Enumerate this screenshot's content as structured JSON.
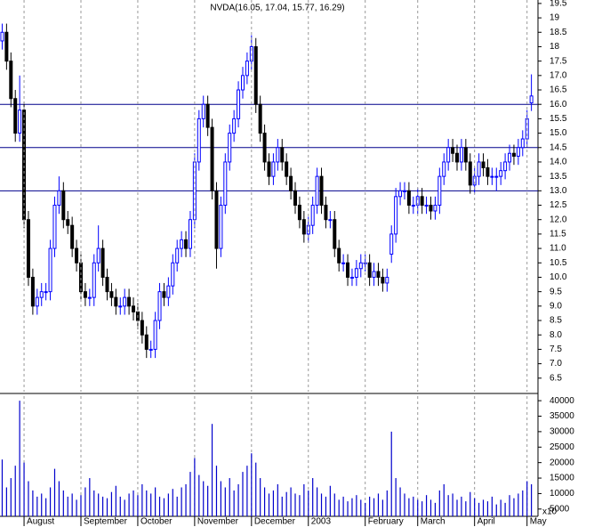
{
  "chart_data": [
    {
      "type": "candlestick",
      "title": "NVDA(16.05, 17.04, 15.77, 16.29)",
      "open": [
        18.2,
        18.5,
        17.5,
        16.2,
        15,
        15.8,
        12,
        10,
        9,
        9.3,
        9.5,
        9.5,
        11,
        12.5,
        13,
        12,
        11.8,
        11,
        10.5,
        9.5,
        9.3,
        9.3,
        10.5,
        11,
        10,
        9.5,
        9.3,
        9,
        9,
        9.3,
        9,
        8.8,
        8.5,
        8,
        7.5,
        7.5,
        8.5,
        9.5,
        9.3,
        9.7,
        10.5,
        11,
        11.3,
        11,
        12,
        14,
        15.5,
        16,
        15.2,
        13,
        11,
        12.5,
        14,
        15,
        15.5,
        16.5,
        17,
        17.5,
        18,
        16,
        15,
        14,
        13.5,
        14,
        14.5,
        14,
        13.5,
        13,
        12.5,
        12,
        11.5,
        11.8,
        12.5,
        13.5,
        12.5,
        12,
        12,
        11,
        10.5,
        10.5,
        10,
        10,
        10.3,
        10.5,
        10.5,
        10,
        10.2,
        10,
        9.8,
        10.8,
        11.5,
        12.8,
        13,
        13,
        12.5,
        12.5,
        12.8,
        12.5,
        12.5,
        12.3,
        12.5,
        13.5,
        14,
        14.5,
        14.3,
        14,
        14.5,
        14,
        13.2,
        13.5,
        14,
        13.8,
        13.5,
        13.5,
        13.5,
        13.7,
        14,
        14.3,
        14.2,
        14.5,
        14.8,
        16.05
      ],
      "high": [
        18.8,
        18.8,
        17.8,
        16.5,
        17,
        16.1,
        12.3,
        10.3,
        9.6,
        9.8,
        9.8,
        11.3,
        12.8,
        13.5,
        13.3,
        12.3,
        12.1,
        11.3,
        10.8,
        9.8,
        9.6,
        10.8,
        11.8,
        11.3,
        10.3,
        9.8,
        9.6,
        9.3,
        9.6,
        9.6,
        9.3,
        9.1,
        8.8,
        8.3,
        7.8,
        8.8,
        9.8,
        9.8,
        10,
        10.8,
        11.3,
        11.6,
        11.6,
        12.3,
        14.3,
        15.8,
        16.3,
        16.3,
        15.5,
        13.3,
        12.8,
        14.3,
        15.3,
        15.8,
        16.8,
        17.3,
        17.8,
        18.4,
        18.3,
        16.3,
        15.3,
        14.3,
        14.3,
        14.8,
        14.8,
        14.3,
        13.8,
        13.3,
        12.8,
        12.3,
        12.1,
        12.8,
        13.8,
        13.8,
        12.8,
        12.3,
        12.3,
        11.3,
        10.8,
        10.8,
        10.3,
        10.6,
        10.8,
        10.8,
        10.8,
        10.5,
        10.5,
        10.3,
        10.3,
        11.8,
        13.1,
        13.3,
        13.3,
        13.3,
        12.8,
        13.1,
        13.1,
        12.8,
        12.8,
        12.8,
        13.8,
        14.3,
        14.8,
        14.8,
        14.6,
        14.8,
        14.8,
        14.3,
        13.8,
        14.3,
        14.3,
        14.1,
        13.8,
        13.8,
        14,
        14.3,
        14.6,
        14.6,
        14.8,
        15.1,
        15.8,
        17.04
      ],
      "low": [
        17.9,
        17.2,
        15.9,
        14.7,
        14.7,
        11.7,
        9.7,
        8.7,
        8.7,
        9,
        9.2,
        9.2,
        10.7,
        12.2,
        11.7,
        11.5,
        10.7,
        10.2,
        9.2,
        9,
        9,
        9,
        10.2,
        9.7,
        9.2,
        9,
        8.7,
        8.7,
        8.7,
        8.7,
        8.5,
        8.2,
        7.7,
        7.2,
        7.2,
        7.2,
        8.2,
        9,
        9,
        9.4,
        10.2,
        10.7,
        10.7,
        10.7,
        11.7,
        13.7,
        15.2,
        14.9,
        12.7,
        10.3,
        10.7,
        12.2,
        13.7,
        14.7,
        15.2,
        16.2,
        16.7,
        17.2,
        15.7,
        14.7,
        13.7,
        13.2,
        13.2,
        13.7,
        13.7,
        13.2,
        12.7,
        12.2,
        11.7,
        11.2,
        11.2,
        11.5,
        12.2,
        12.2,
        11.7,
        11.7,
        10.7,
        10.2,
        10.2,
        9.7,
        9.7,
        9.7,
        10,
        10.2,
        9.7,
        9.7,
        9.7,
        9.5,
        9.5,
        10.5,
        11.2,
        12.5,
        12.7,
        12.2,
        12.2,
        12.2,
        12.2,
        12.2,
        12,
        12,
        12.2,
        13.2,
        13.7,
        14,
        13.7,
        13.7,
        13.7,
        12.9,
        12.9,
        13.2,
        13.5,
        13.2,
        13.2,
        13,
        13.2,
        13.4,
        13.7,
        13.9,
        13.9,
        14.2,
        14.5,
        15.77
      ],
      "close": [
        18.5,
        17.5,
        16.2,
        15,
        15.8,
        12,
        10,
        9,
        9.3,
        9.5,
        9.5,
        11,
        12.5,
        13,
        12,
        11.8,
        11,
        10.5,
        9.5,
        9.3,
        9.3,
        10.5,
        11,
        10,
        9.5,
        9.3,
        9,
        9,
        9.3,
        9,
        8.8,
        8.5,
        8,
        7.5,
        7.5,
        8.5,
        9.5,
        9.3,
        9.7,
        10.5,
        11,
        11.3,
        11,
        12,
        14,
        15.5,
        16,
        15.2,
        13,
        11,
        12.5,
        14,
        15,
        15.5,
        16.5,
        17,
        17.5,
        18,
        16,
        15,
        14,
        13.5,
        14,
        14.5,
        14,
        13.5,
        13,
        12.5,
        12,
        11.5,
        11.8,
        12.5,
        13.5,
        12.5,
        12,
        12,
        11,
        10.5,
        10.5,
        10,
        10,
        10.3,
        10.5,
        10.5,
        10,
        10.2,
        10,
        9.8,
        10,
        11.5,
        12.8,
        13,
        13,
        12.5,
        12.5,
        12.8,
        12.5,
        12.5,
        12.3,
        12.5,
        13.5,
        14,
        14.5,
        14.3,
        14,
        14.5,
        14,
        13.2,
        13.5,
        14,
        13.8,
        13.5,
        13.5,
        13.5,
        13.7,
        14,
        14.3,
        14.2,
        14.5,
        14.8,
        15.5,
        16.29
      ],
      "up_color": "#0000ff",
      "down_color": "#000000",
      "hlines": [
        16,
        14.5,
        13
      ],
      "hline_color": "#00008b",
      "xlim": [
        -0.5,
        122.5
      ],
      "ylim": [
        6.03,
        19.62
      ],
      "yticks": [
        19.5,
        19,
        18.5,
        18,
        17.5,
        {
          "value": 17,
          "label": "17.0"
        },
        16.5,
        {
          "value": 16,
          "label": "16.0"
        },
        15.5,
        {
          "value": 15,
          "label": "15.0"
        },
        14.5,
        {
          "value": 14,
          "label": "14.0"
        },
        13.5,
        {
          "value": 13,
          "label": "13.0"
        },
        12.5,
        {
          "value": 12,
          "label": "12.0"
        },
        11.5,
        {
          "value": 11,
          "label": "11.0"
        },
        10.5,
        {
          "value": 10,
          "label": "10.0"
        },
        9.5,
        {
          "value": 9,
          "label": "9.0"
        },
        8.5,
        {
          "value": 8,
          "label": "8.0"
        },
        7.5,
        {
          "value": 7,
          "label": "7.0"
        },
        6.5
      ]
    },
    {
      "type": "bar",
      "values": [
        21000,
        12000,
        15000,
        19000,
        40000,
        20000,
        14000,
        11000,
        9000,
        10000,
        8500,
        12000,
        18000,
        14000,
        11000,
        9000,
        10000,
        8000,
        9500,
        12000,
        15000,
        11000,
        10000,
        9000,
        8500,
        10500,
        12500,
        9000,
        8000,
        10000,
        11000,
        9500,
        13000,
        11000,
        10000,
        12000,
        9000,
        8500,
        10000,
        11500,
        9000,
        12000,
        13000,
        17000,
        21500,
        16000,
        14000,
        12500,
        32500,
        19000,
        14000,
        12000,
        15000,
        11000,
        13000,
        17000,
        19000,
        23000,
        20000,
        15000,
        12000,
        10000,
        11000,
        13000,
        9000,
        10500,
        12000,
        10000,
        9500,
        13000,
        11000,
        15000,
        12000,
        10000,
        9000,
        12500,
        10000,
        8000,
        9000,
        7500,
        8500,
        9500,
        8000,
        7000,
        9000,
        8500,
        10000,
        8000,
        11000,
        30000,
        15000,
        12000,
        10000,
        8500,
        9000,
        8000,
        7500,
        9500,
        8000,
        7000,
        11000,
        13000,
        9500,
        10000,
        8000,
        9000,
        7500,
        10500,
        8500,
        7000,
        8000,
        7500,
        9000,
        6500,
        8000,
        7000,
        9500,
        8500,
        10000,
        11000,
        14000,
        13000
      ],
      "color": "#0000cc",
      "xlim": [
        -0.5,
        122.5
      ],
      "ylim": [
        2650,
        41470
      ],
      "yticks": [
        40000,
        35000,
        30000,
        25000,
        20000,
        15000,
        10000,
        5000
      ],
      "unit_label": "x10",
      "xticks": [
        {
          "value": 5,
          "label": "August"
        },
        {
          "value": 18,
          "label": "September"
        },
        {
          "value": 31,
          "label": "October"
        },
        {
          "value": 44,
          "label": "November"
        },
        {
          "value": 57,
          "label": "December"
        },
        {
          "value": 70,
          "label": "2003"
        },
        {
          "value": 83,
          "label": "February"
        },
        {
          "value": 95,
          "label": "March"
        },
        {
          "value": 108,
          "label": "April"
        },
        {
          "value": 120,
          "label": "May"
        }
      ]
    }
  ]
}
